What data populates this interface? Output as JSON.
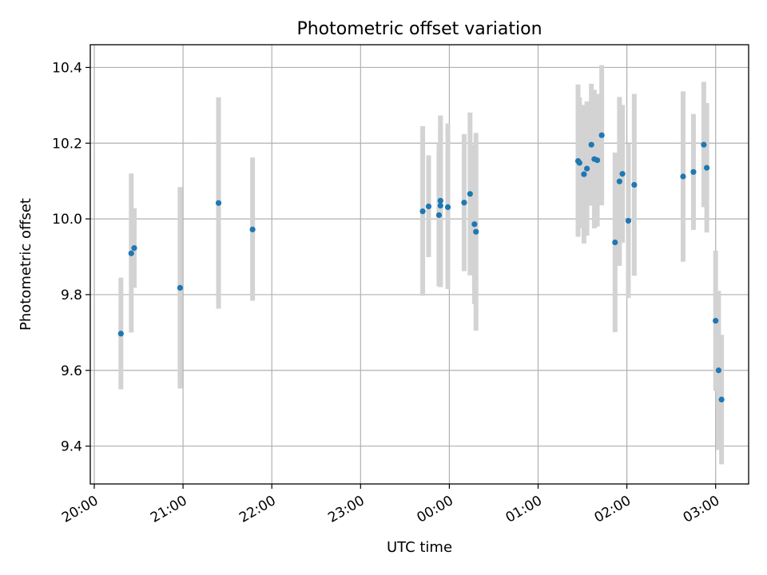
{
  "chart_data": {
    "type": "scatter",
    "title": "Photometric offset variation",
    "xlabel": "UTC time",
    "ylabel": "Photometric offset",
    "grid": true,
    "x_is_time": true,
    "xlim": [
      "20:00",
      "03:25"
    ],
    "ylim": [
      9.3,
      10.46
    ],
    "x_ticks": [
      "20:00",
      "21:00",
      "22:00",
      "23:00",
      "00:00",
      "01:00",
      "02:00",
      "03:00"
    ],
    "y_ticks": [
      9.4,
      9.6,
      9.8,
      10.0,
      10.2,
      10.4
    ],
    "y_tick_labels": [
      "9.4",
      "9.6",
      "9.8",
      "10.0",
      "10.2",
      "10.4"
    ],
    "colors": {
      "point": "#1f77b4",
      "errorbar": "#d3d3d3"
    },
    "series": [
      {
        "points": [
          {
            "t": "20:18",
            "y": 9.697,
            "lo": 9.55,
            "hi": 9.845
          },
          {
            "t": "20:25",
            "y": 9.909,
            "lo": 9.7,
            "hi": 10.12
          },
          {
            "t": "20:27",
            "y": 9.923,
            "lo": 9.818,
            "hi": 10.028
          },
          {
            "t": "20:58",
            "y": 9.818,
            "lo": 9.552,
            "hi": 10.084
          },
          {
            "t": "21:24",
            "y": 10.042,
            "lo": 9.763,
            "hi": 10.321
          },
          {
            "t": "21:47",
            "y": 9.972,
            "lo": 9.784,
            "hi": 10.162
          },
          {
            "t": "23:42",
            "y": 10.02,
            "lo": 9.797,
            "hi": 10.245
          },
          {
            "t": "23:46",
            "y": 10.033,
            "lo": 9.899,
            "hi": 10.168
          },
          {
            "t": "23:53",
            "y": 10.01,
            "lo": 9.822,
            "hi": 10.198
          },
          {
            "t": "23:54",
            "y": 10.048,
            "lo": 9.823,
            "hi": 10.273
          },
          {
            "t": "23:54",
            "y": 10.035,
            "lo": 9.82,
            "hi": 10.25
          },
          {
            "t": "23:59",
            "y": 10.031,
            "lo": 9.815,
            "hi": 10.252
          },
          {
            "t": "00:10",
            "y": 10.043,
            "lo": 9.862,
            "hi": 10.224
          },
          {
            "t": "00:14",
            "y": 10.066,
            "lo": 9.851,
            "hi": 10.281
          },
          {
            "t": "00:17",
            "y": 9.986,
            "lo": 9.775,
            "hi": 10.197
          },
          {
            "t": "00:18",
            "y": 9.966,
            "lo": 9.705,
            "hi": 10.227
          },
          {
            "t": "01:27",
            "y": 10.153,
            "lo": 9.953,
            "hi": 10.355
          },
          {
            "t": "01:28",
            "y": 10.148,
            "lo": 9.975,
            "hi": 10.321
          },
          {
            "t": "01:31",
            "y": 10.118,
            "lo": 9.935,
            "hi": 10.301
          },
          {
            "t": "01:33",
            "y": 10.133,
            "lo": 9.956,
            "hi": 10.31
          },
          {
            "t": "01:36",
            "y": 10.196,
            "lo": 10.035,
            "hi": 10.357
          },
          {
            "t": "01:38",
            "y": 10.158,
            "lo": 9.975,
            "hi": 10.341
          },
          {
            "t": "01:40",
            "y": 10.155,
            "lo": 9.98,
            "hi": 10.33
          },
          {
            "t": "01:43",
            "y": 10.221,
            "lo": 10.036,
            "hi": 10.406
          },
          {
            "t": "01:52",
            "y": 9.938,
            "lo": 9.701,
            "hi": 10.175
          },
          {
            "t": "01:55",
            "y": 10.099,
            "lo": 9.876,
            "hi": 10.322
          },
          {
            "t": "01:57",
            "y": 10.119,
            "lo": 9.937,
            "hi": 10.301
          },
          {
            "t": "02:01",
            "y": 9.995,
            "lo": 9.791,
            "hi": 10.199
          },
          {
            "t": "02:05",
            "y": 10.09,
            "lo": 9.85,
            "hi": 10.33
          },
          {
            "t": "02:38",
            "y": 10.112,
            "lo": 9.887,
            "hi": 10.337
          },
          {
            "t": "02:45",
            "y": 10.124,
            "lo": 9.971,
            "hi": 10.277
          },
          {
            "t": "02:52",
            "y": 10.196,
            "lo": 10.031,
            "hi": 10.362
          },
          {
            "t": "02:54",
            "y": 10.135,
            "lo": 9.964,
            "hi": 10.306
          },
          {
            "t": "03:00",
            "y": 9.731,
            "lo": 9.546,
            "hi": 9.916
          },
          {
            "t": "03:02",
            "y": 9.6,
            "lo": 9.39,
            "hi": 9.81
          },
          {
            "t": "03:04",
            "y": 9.523,
            "lo": 9.352,
            "hi": 9.694
          }
        ]
      }
    ]
  }
}
